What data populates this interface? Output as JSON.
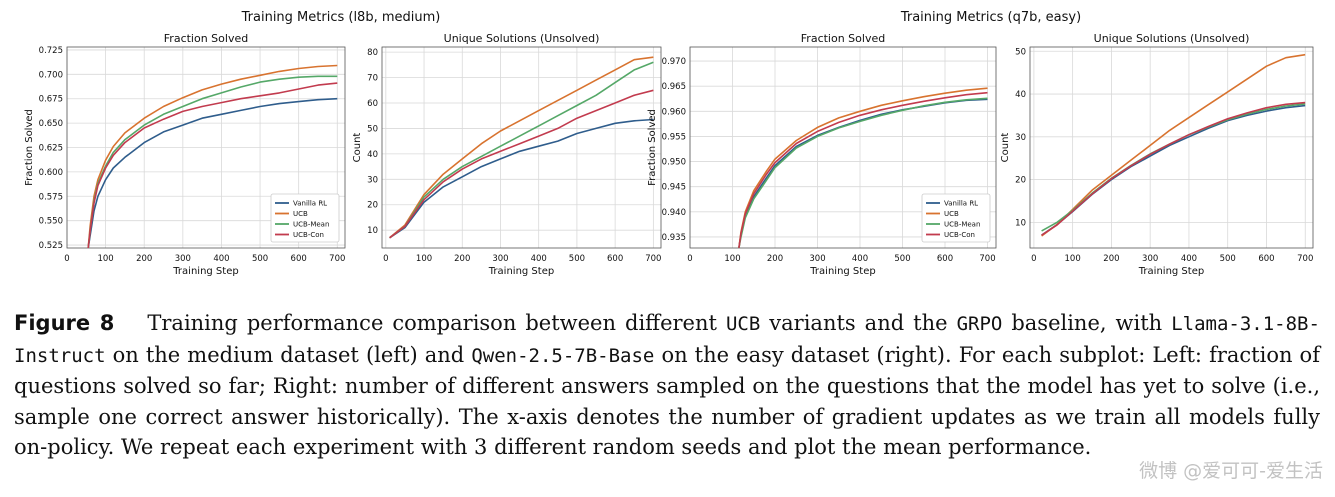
{
  "figure": {
    "group_left_title": "Training Metrics (l8b, medium)",
    "group_right_title": "Training Metrics (q7b, easy)",
    "caption": {
      "label": "Figure 8",
      "t1": "Training performance comparison between different",
      "c1": "UCB",
      "t2": "variants and the",
      "c2": "GRPO",
      "t3": "baseline, with",
      "c3": "Llama-3.1-8B-Instruct",
      "t4": "on the medium dataset (left) and",
      "c4": "Qwen-2.5-7B-Base",
      "t5": "on the easy dataset (right). For each subplot: Left: fraction of questions solved so far; Right: number of different answers sampled on the questions that the model has yet to solve (i.e., sample one correct answer historically). The x-axis denotes the number of gradient updates as we train all models fully on-policy. We repeat each experiment with 3 different random seeds and plot the mean performance."
    },
    "watermark": "微博 @爱可可-爱生活"
  },
  "colors": {
    "Vanilla RL": "#2f5d8c",
    "UCB": "#d8732f",
    "UCB-Mean": "#55a868",
    "UCB-Con": "#c23b4e",
    "grid": "#d9d9d9",
    "frame": "#555555"
  },
  "chart_data": [
    {
      "type": "line",
      "title": "Fraction Solved",
      "xlabel": "Training Step",
      "ylabel": "Fraction Solved",
      "xlim": [
        0,
        720
      ],
      "ylim": [
        0.522,
        0.728
      ],
      "xticks": [
        0,
        100,
        200,
        300,
        400,
        500,
        600,
        700
      ],
      "yticks": [
        0.525,
        0.55,
        0.575,
        0.6,
        0.625,
        0.65,
        0.675,
        0.7,
        0.725
      ],
      "yfmt": 3,
      "grid": true,
      "legend": "bottom-right",
      "x": [
        55,
        60,
        70,
        80,
        100,
        120,
        150,
        200,
        250,
        300,
        350,
        400,
        450,
        500,
        550,
        600,
        650,
        700
      ],
      "series": [
        {
          "name": "Vanilla RL",
          "values": [
            0.522,
            0.535,
            0.56,
            0.575,
            0.592,
            0.604,
            0.615,
            0.63,
            0.641,
            0.648,
            0.655,
            0.659,
            0.663,
            0.667,
            0.67,
            0.672,
            0.674,
            0.675
          ]
        },
        {
          "name": "UCB",
          "values": [
            0.522,
            0.545,
            0.575,
            0.592,
            0.612,
            0.626,
            0.64,
            0.655,
            0.667,
            0.676,
            0.684,
            0.69,
            0.695,
            0.699,
            0.703,
            0.706,
            0.708,
            0.709
          ]
        },
        {
          "name": "UCB-Mean",
          "values": [
            0.522,
            0.54,
            0.57,
            0.588,
            0.606,
            0.62,
            0.633,
            0.648,
            0.659,
            0.667,
            0.675,
            0.681,
            0.687,
            0.692,
            0.695,
            0.697,
            0.698,
            0.698
          ]
        },
        {
          "name": "UCB-Con",
          "values": [
            0.522,
            0.54,
            0.568,
            0.586,
            0.604,
            0.617,
            0.63,
            0.645,
            0.654,
            0.662,
            0.667,
            0.671,
            0.675,
            0.678,
            0.681,
            0.685,
            0.689,
            0.691
          ]
        }
      ]
    },
    {
      "type": "line",
      "title": "Unique Solutions (Unsolved)",
      "xlabel": "Training Step",
      "ylabel": "Count",
      "xlim": [
        -10,
        720
      ],
      "ylim": [
        3,
        82
      ],
      "xticks": [
        0,
        100,
        200,
        300,
        400,
        500,
        600,
        700
      ],
      "yticks": [
        10,
        20,
        30,
        40,
        50,
        60,
        70,
        80
      ],
      "yfmt": 0,
      "grid": true,
      "x": [
        10,
        50,
        100,
        150,
        200,
        250,
        300,
        350,
        400,
        450,
        500,
        550,
        600,
        650,
        700
      ],
      "series": [
        {
          "name": "Vanilla RL",
          "values": [
            7,
            11,
            21,
            27,
            31,
            35,
            38,
            41,
            43,
            45,
            48,
            50,
            52,
            53,
            53.5
          ]
        },
        {
          "name": "UCB",
          "values": [
            7,
            12,
            24,
            32,
            38,
            44,
            49,
            53,
            57,
            61,
            65,
            69,
            73,
            77,
            78
          ]
        },
        {
          "name": "UCB-Mean",
          "values": [
            7,
            11.5,
            23,
            30,
            35,
            39,
            43,
            47,
            51,
            55,
            59,
            63,
            68,
            73,
            76
          ]
        },
        {
          "name": "UCB-Con",
          "values": [
            7,
            11.5,
            22,
            29,
            34,
            38,
            41,
            44,
            47,
            50,
            54,
            57,
            60,
            63,
            65
          ]
        }
      ]
    },
    {
      "type": "line",
      "title": "Fraction Solved",
      "xlabel": "Training Step",
      "ylabel": "Fraction Solved",
      "xlim": [
        0,
        720
      ],
      "ylim": [
        0.9328,
        0.9728
      ],
      "xticks": [
        0,
        100,
        200,
        300,
        400,
        500,
        600,
        700
      ],
      "yticks": [
        0.935,
        0.94,
        0.945,
        0.95,
        0.955,
        0.96,
        0.965,
        0.97
      ],
      "yfmt": 3,
      "grid": true,
      "legend": "bottom-right",
      "x": [
        115,
        120,
        130,
        150,
        180,
        200,
        250,
        300,
        350,
        400,
        450,
        500,
        550,
        600,
        650,
        700
      ],
      "series": [
        {
          "name": "Vanilla RL",
          "values": [
            0.9328,
            0.9355,
            0.9392,
            0.943,
            0.9468,
            0.9492,
            0.953,
            0.9552,
            0.9568,
            0.9582,
            0.9594,
            0.9603,
            0.961,
            0.9617,
            0.9622,
            0.9624
          ]
        },
        {
          "name": "UCB",
          "values": [
            0.9328,
            0.936,
            0.94,
            0.9442,
            0.9481,
            0.9505,
            0.9542,
            0.9568,
            0.9587,
            0.96,
            0.9612,
            0.9621,
            0.9629,
            0.9636,
            0.9642,
            0.9646
          ]
        },
        {
          "name": "UCB-Mean",
          "values": [
            0.9328,
            0.935,
            0.9388,
            0.9426,
            0.9463,
            0.9488,
            0.9527,
            0.955,
            0.9567,
            0.958,
            0.9592,
            0.9602,
            0.9611,
            0.9618,
            0.9623,
            0.9626
          ]
        },
        {
          "name": "UCB-Con",
          "values": [
            0.9328,
            0.9357,
            0.9396,
            0.9436,
            0.9475,
            0.9498,
            0.9536,
            0.956,
            0.9578,
            0.9592,
            0.9603,
            0.9612,
            0.962,
            0.9627,
            0.9633,
            0.9637
          ]
        }
      ]
    },
    {
      "type": "line",
      "title": "Unique Solutions (Unsolved)",
      "xlabel": "Training Step",
      "ylabel": "Count",
      "xlim": [
        -10,
        720
      ],
      "ylim": [
        4,
        51
      ],
      "xticks": [
        0,
        100,
        200,
        300,
        400,
        500,
        600,
        700
      ],
      "yticks": [
        10,
        20,
        30,
        40,
        50
      ],
      "yfmt": 0,
      "grid": true,
      "x": [
        20,
        60,
        100,
        150,
        200,
        250,
        300,
        350,
        400,
        450,
        500,
        550,
        600,
        650,
        700
      ],
      "series": [
        {
          "name": "Vanilla RL",
          "values": [
            7,
            9.5,
            12.5,
            16.5,
            20,
            23,
            25.5,
            28,
            30,
            32,
            33.8,
            35,
            36,
            36.8,
            37.3
          ]
        },
        {
          "name": "UCB",
          "values": [
            6.8,
            9.5,
            13,
            17.5,
            21,
            24.5,
            28,
            31.5,
            34.5,
            37.5,
            40.5,
            43.5,
            46.5,
            48.5,
            49.2
          ]
        },
        {
          "name": "UCB-Mean",
          "values": [
            8,
            10,
            12.8,
            16.8,
            20.3,
            23.3,
            26,
            28.3,
            30.5,
            32.3,
            34,
            35.3,
            36.4,
            37.2,
            37.7
          ]
        },
        {
          "name": "UCB-Con",
          "values": [
            7,
            9.4,
            12.6,
            16.6,
            20.2,
            23.2,
            25.9,
            28.3,
            30.5,
            32.4,
            34.2,
            35.6,
            36.8,
            37.6,
            38
          ]
        }
      ]
    }
  ]
}
